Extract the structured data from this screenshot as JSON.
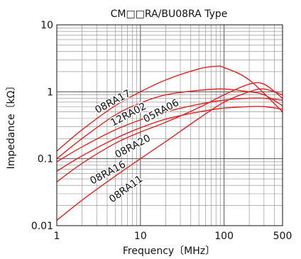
{
  "chart_data": {
    "type": "line",
    "title": "CM□□RA/BU08RA Type",
    "xlabel": "Frequency〔MHz〕",
    "ylabel": "Impedance〔kΩ〕",
    "xscale": "log",
    "yscale": "log",
    "xlim": [
      1,
      500
    ],
    "ylim": [
      0.01,
      10
    ],
    "grid": true,
    "xticks": [
      {
        "value": 1,
        "label": "1"
      },
      {
        "value": 10,
        "label": "10"
      },
      {
        "value": 100,
        "label": "100"
      },
      {
        "value": 500,
        "label": "500"
      }
    ],
    "yticks": [
      {
        "value": 0.01,
        "label": "0.01"
      },
      {
        "value": 0.1,
        "label": "0.1"
      },
      {
        "value": 1,
        "label": "1"
      },
      {
        "value": 10,
        "label": "10"
      }
    ],
    "series_color": "#dd2222",
    "series": [
      {
        "name": "08RA17",
        "x": [
          1,
          2,
          5,
          10,
          20,
          50,
          80,
          100,
          200,
          500
        ],
        "y": [
          0.13,
          0.27,
          0.62,
          1.0,
          1.5,
          2.2,
          2.4,
          2.3,
          1.5,
          0.5
        ]
      },
      {
        "name": "12RA02",
        "x": [
          1,
          2,
          5,
          10,
          20,
          50,
          100,
          200,
          300,
          500
        ],
        "y": [
          0.1,
          0.2,
          0.45,
          0.68,
          0.9,
          1.05,
          1.1,
          1.0,
          0.9,
          0.62
        ]
      },
      {
        "name": "05RA06",
        "x": [
          1,
          2,
          5,
          10,
          20,
          50,
          100,
          200,
          300,
          500
        ],
        "y": [
          0.09,
          0.15,
          0.27,
          0.38,
          0.5,
          0.65,
          0.75,
          0.8,
          0.8,
          0.75
        ]
      },
      {
        "name": "08RA20",
        "x": [
          1,
          2,
          5,
          10,
          20,
          50,
          100,
          200,
          300,
          500
        ],
        "y": [
          0.065,
          0.11,
          0.2,
          0.29,
          0.39,
          0.5,
          0.57,
          0.6,
          0.6,
          0.55
        ]
      },
      {
        "name": "08RA16",
        "x": [
          1,
          2,
          5,
          10,
          20,
          50,
          100,
          200,
          300,
          500
        ],
        "y": [
          0.045,
          0.085,
          0.17,
          0.25,
          0.35,
          0.58,
          0.9,
          1.3,
          1.3,
          0.8
        ]
      },
      {
        "name": "08RA11",
        "x": [
          1,
          2,
          5,
          10,
          20,
          50,
          100,
          200,
          300,
          500
        ],
        "y": [
          0.012,
          0.024,
          0.055,
          0.1,
          0.18,
          0.4,
          0.7,
          1.0,
          1.1,
          0.9
        ]
      }
    ],
    "curve_labels": [
      {
        "series": "08RA17",
        "text": "08RA17"
      },
      {
        "series": "12RA02",
        "text": "12RA02"
      },
      {
        "series": "05RA06",
        "text": "05RA06"
      },
      {
        "series": "08RA20",
        "text": "08RA20"
      },
      {
        "series": "08RA16",
        "text": "08RA16"
      },
      {
        "series": "08RA11",
        "text": "08RA11"
      }
    ]
  }
}
